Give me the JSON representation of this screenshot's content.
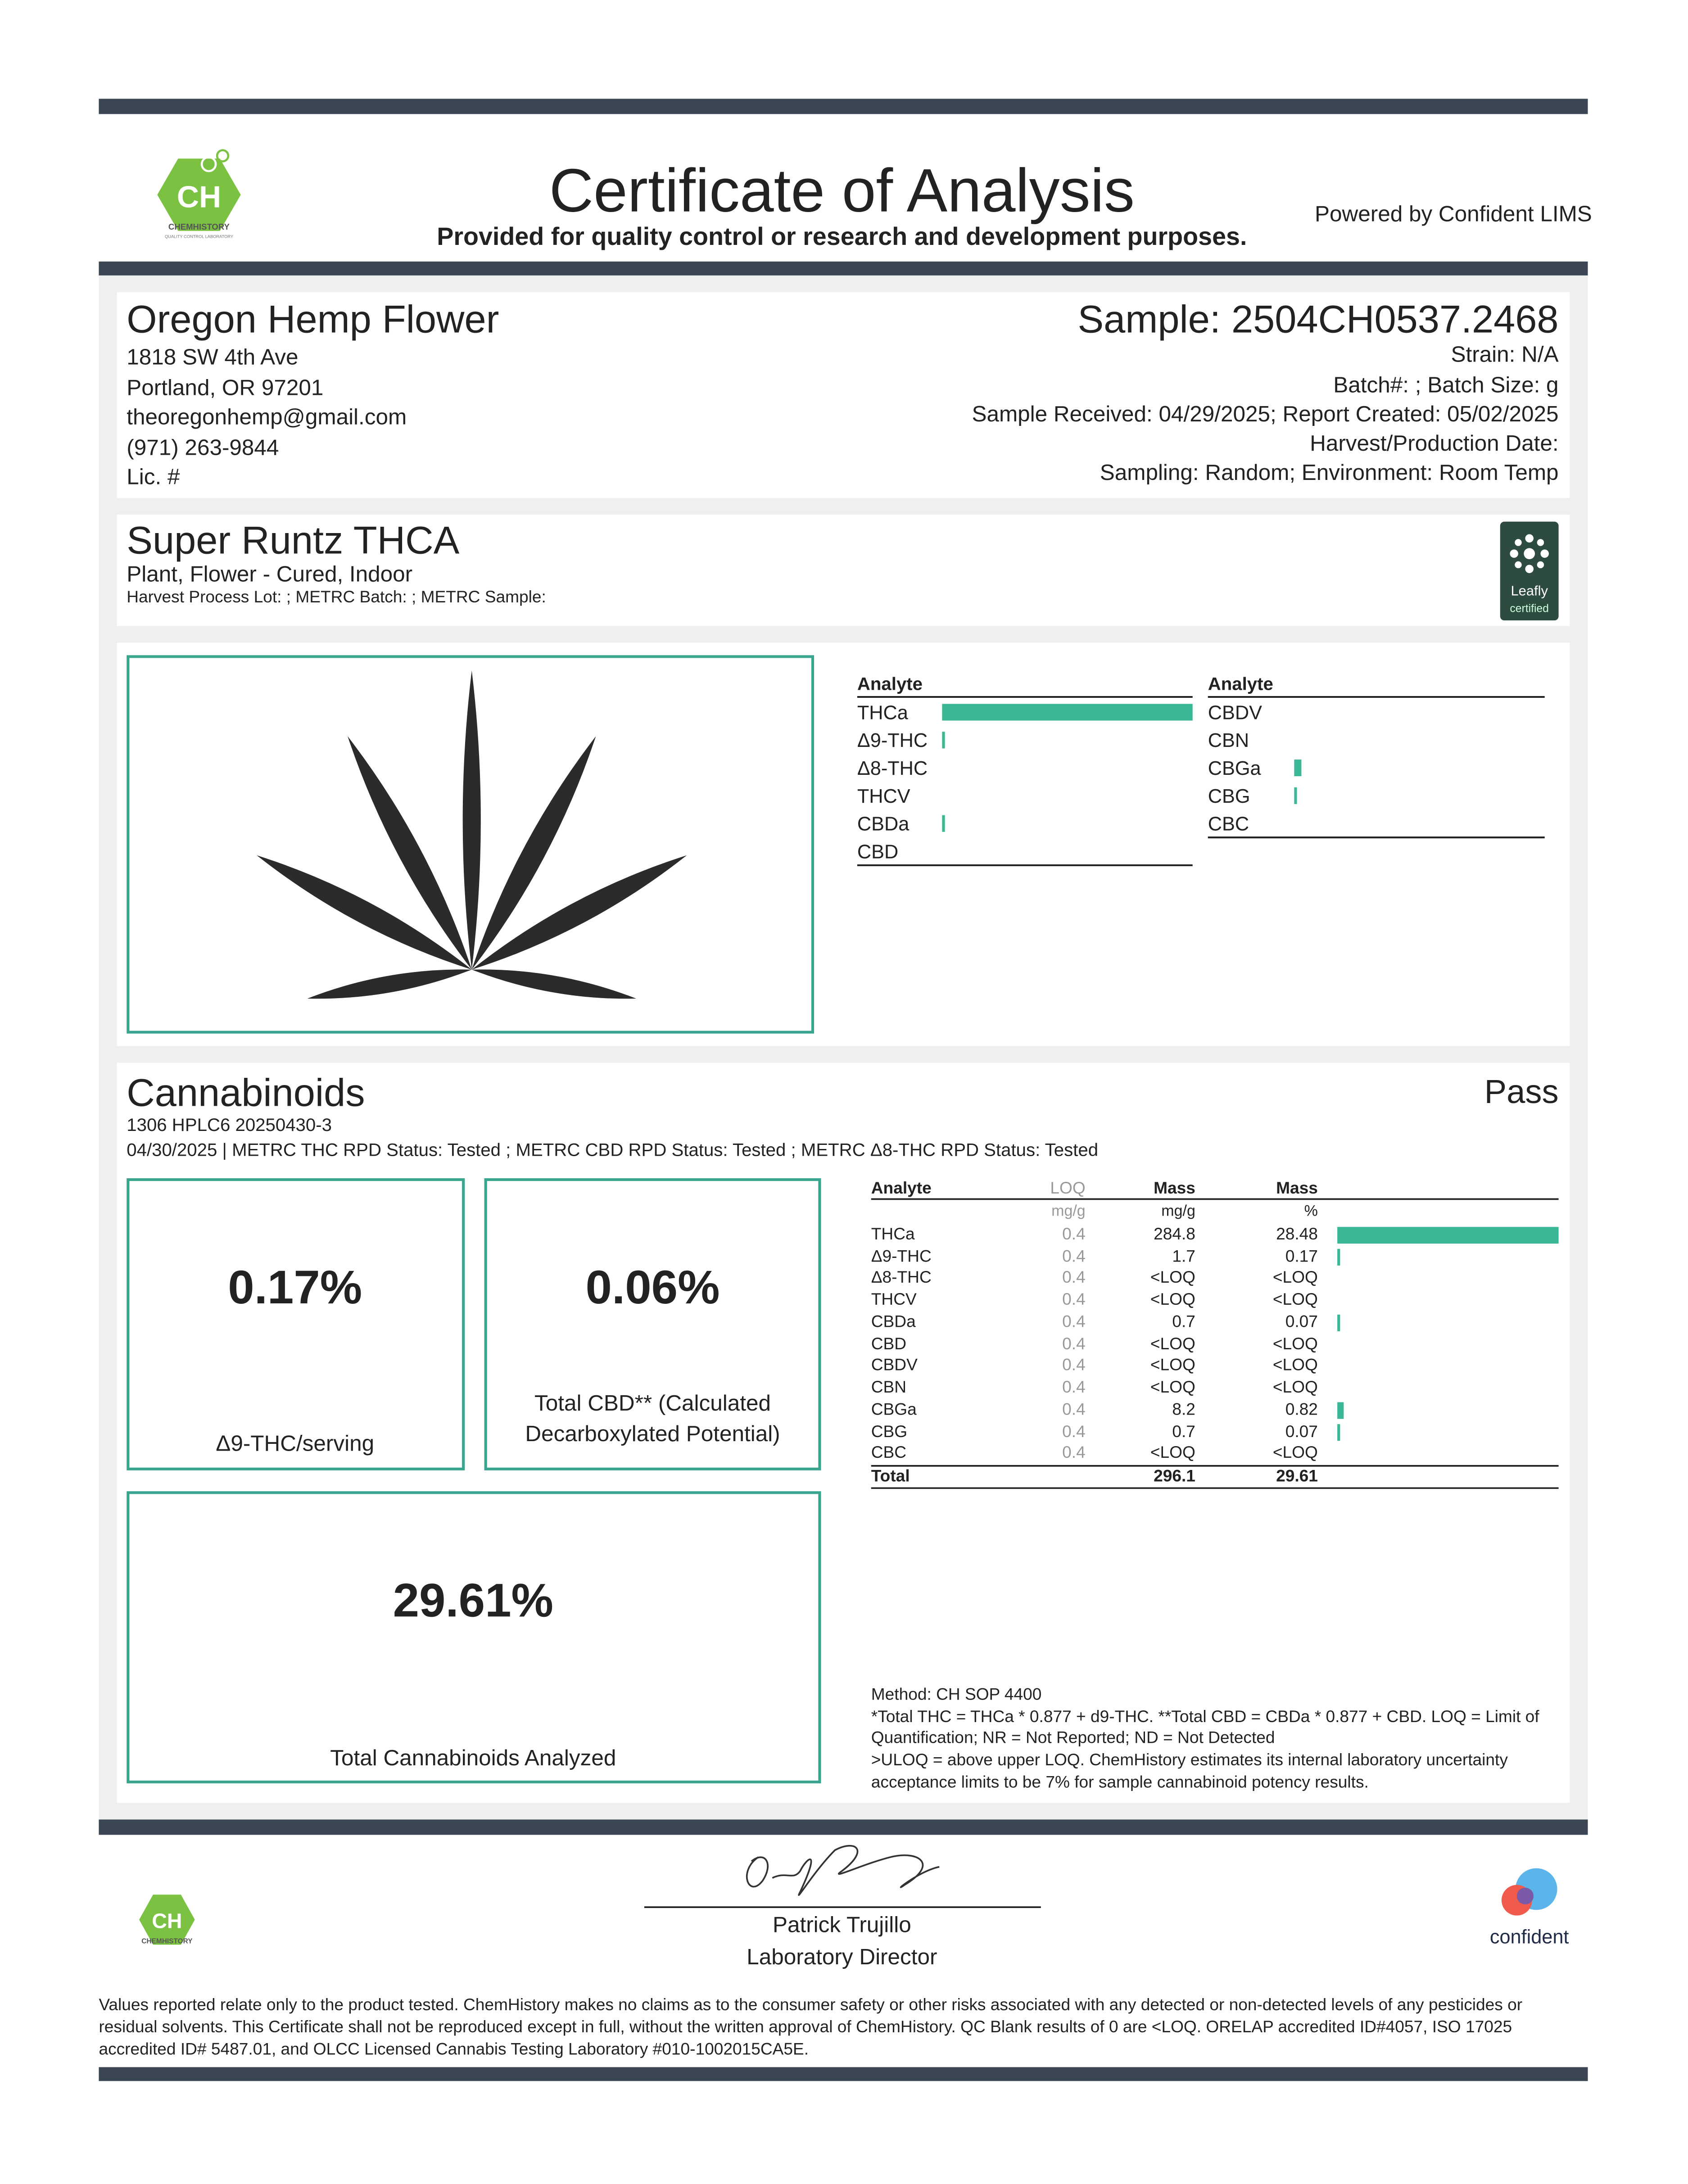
{
  "header": {
    "title": "Certificate of Analysis",
    "subtitle": "Provided for quality control or research and development purposes.",
    "powered_by": "Powered by Confident LIMS"
  },
  "logos": {
    "ch_mark": "CH",
    "ch_name": "CHEMHISTORY",
    "ch_tag": "QUALITY CONTROL LABORATORY",
    "leafly": "Leafly",
    "leafly_sub": "certified",
    "confident": "confident"
  },
  "client": {
    "name": "Oregon Hemp Flower",
    "lines": [
      "1818 SW 4th Ave",
      "Portland, OR 97201",
      "theoregonhemp@gmail.com",
      "(971) 263-9844",
      "Lic. #"
    ]
  },
  "sample": {
    "id": "Sample: 2504CH0537.2468",
    "lines": [
      "Strain: N/A",
      "Batch#: ; Batch Size:  g",
      "Sample Received: 04/29/2025; Report Created: 05/02/2025",
      "Harvest/Production Date: ",
      "Sampling: Random; Environment: Room Temp"
    ]
  },
  "product": {
    "name": "Super Runtz THCA",
    "type": "Plant, Flower - Cured, Indoor",
    "lots": "Harvest Process Lot: ; METRC Batch: ; METRC Sample:"
  },
  "summary_lists": [
    {
      "header": "Analyte",
      "items": [
        "THCa",
        "Δ9-THC",
        "Δ8-THC",
        "THCV",
        "CBDa",
        "CBD"
      ]
    },
    {
      "header": "Analyte",
      "items": [
        "CBDV",
        "CBN",
        "CBGa",
        "CBG",
        "CBC"
      ]
    }
  ],
  "cannabinoids": {
    "title": "Cannabinoids",
    "result": "Pass",
    "instrument": "1306 HPLC6 20250430-3",
    "status": "04/30/2025 | METRC THC RPD Status: Tested ; METRC CBD RPD Status: Tested ; METRC Δ8-THC RPD Status: Tested",
    "boxes": [
      {
        "value": "0.17%",
        "label": "Δ9-THC/serving"
      },
      {
        "value": "0.06%",
        "label": "Total CBD** (Calculated Decarboxylated Potential)"
      },
      {
        "value": "29.61%",
        "label": "Total Cannabinoids Analyzed"
      }
    ],
    "table": {
      "columns": [
        "Analyte",
        "LOQ",
        "Mass",
        "Mass"
      ],
      "units": [
        "mg/g",
        "mg/g",
        "%"
      ],
      "rows": [
        [
          "THCa",
          0.4,
          284.8,
          28.48
        ],
        [
          "Δ9-THC",
          0.4,
          1.7,
          0.17
        ],
        [
          "Δ8-THC",
          0.4,
          "<LOQ",
          "<LOQ"
        ],
        [
          "THCV",
          0.4,
          "<LOQ",
          "<LOQ"
        ],
        [
          "CBDa",
          0.4,
          0.7,
          0.07
        ],
        [
          "CBD",
          0.4,
          "<LOQ",
          "<LOQ"
        ],
        [
          "CBDV",
          0.4,
          "<LOQ",
          "<LOQ"
        ],
        [
          "CBN",
          0.4,
          "<LOQ",
          "<LOQ"
        ],
        [
          "CBGa",
          0.4,
          8.2,
          0.82
        ],
        [
          "CBG",
          0.4,
          0.7,
          0.07
        ],
        [
          "CBC",
          0.4,
          "<LOQ",
          "<LOQ"
        ]
      ],
      "total": [
        "Total",
        296.1,
        29.61
      ]
    },
    "method": [
      "Method: CH SOP 4400",
      "*Total THC = THCa * 0.877 + d9-THC. **Total CBD = CBDa * 0.877 + CBD. LOQ = Limit of",
      "Quantification; NR = Not Reported; ND = Not Detected",
      ">ULOQ = above upper LOQ. ChemHistory estimates its internal laboratory uncertainty",
      "acceptance limits to be 7% for sample cannabinoid potency results."
    ]
  },
  "signatory": {
    "name": "Patrick Trujillo",
    "title": "Laboratory Director"
  },
  "disclaimer": [
    "Values reported relate only to the product tested. ChemHistory makes no claims as to the consumer safety or other risks associated with any detected or non-detected levels of any pesticides or",
    "residual solvents. This Certificate shall not be reproduced except in full, without the written approval of ChemHistory. QC Blank results of 0 are <LOQ.  ORELAP accredited ID#4057, ISO 17025",
    "accredited ID# 5487.01, and OLCC Licensed Cannabis Testing Laboratory #010-1002015CA5E."
  ]
}
